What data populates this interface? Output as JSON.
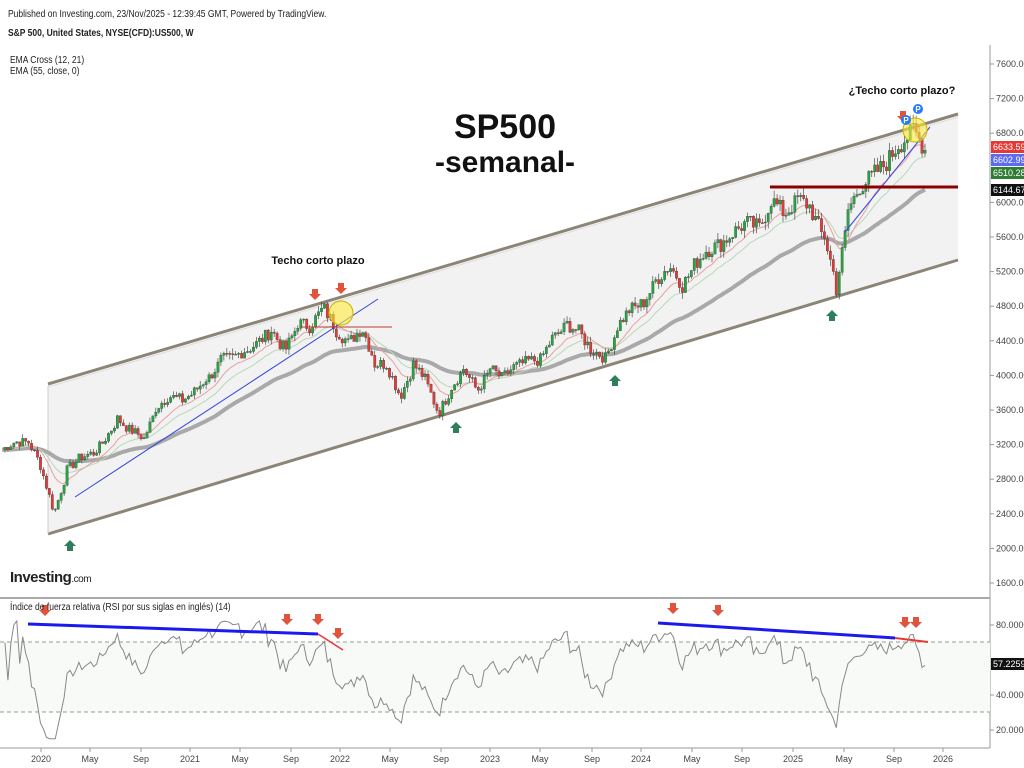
{
  "header": {
    "published": "Published on Investing.com, 23/Nov/2025 - 12:39:45 GMT, Powered by TradingView.",
    "symbol": "S&P 500, United States, NYSE(CFD):US500, W"
  },
  "indicators": [
    "EMA Cross (12, 21)",
    "EMA (55, close, 0)"
  ],
  "logo": {
    "name": "Investing",
    "suffix": "com"
  },
  "rsi_label": "Índice de fuerza relativa (RSI por sus siglas en inglés) (14)",
  "annotations": {
    "title": "SP500",
    "subtitle": "-semanal-",
    "note1": "Techo corto plazo",
    "note2": "¿Techo corto plazo?",
    "marker": "P"
  },
  "price_tags": [
    {
      "value": "6633.59",
      "color": "#e53935"
    },
    {
      "value": "6602.99",
      "color": "#5c6bf0"
    },
    {
      "value": "6510.28",
      "color": "#2e7d32"
    },
    {
      "value": "6144.67",
      "color": "#111111"
    }
  ],
  "rsi_tag": {
    "value": "57.2259",
    "color": "#111111"
  },
  "chart_data": {
    "type": "candlestick",
    "title": "SP500 -semanal-",
    "interval": "weekly",
    "price_axis": {
      "ticks": [
        1600,
        2000,
        2400,
        2800,
        3200,
        3600,
        4000,
        4400,
        4800,
        5200,
        5600,
        6000,
        6800,
        7200,
        7600
      ],
      "range": [
        1400,
        7800
      ]
    },
    "rsi_axis": {
      "ticks": [
        20,
        40,
        80
      ],
      "range": [
        12,
        88
      ],
      "levels": [
        30,
        70
      ]
    },
    "x_ticks": [
      "2020",
      "May",
      "Sep",
      "2021",
      "May",
      "Sep",
      "2022",
      "May",
      "Sep",
      "2023",
      "May",
      "Sep",
      "2024",
      "May",
      "Sep",
      "2025",
      "May",
      "Sep",
      "2026"
    ],
    "monthly_closes": {
      "start": "2019-11",
      "values": [
        3141,
        3231,
        3226,
        2954,
        2450,
        2912,
        3044,
        3100,
        3271,
        3500,
        3363,
        3270,
        3622,
        3756,
        3714,
        3811,
        3973,
        4181,
        4204,
        4298,
        4395,
        4523,
        4308,
        4605,
        4567,
        4766,
        4516,
        4374,
        4530,
        4132,
        4132,
        3785,
        4130,
        3955,
        3586,
        3872,
        4080,
        3840,
        4077,
        3970,
        4109,
        4169,
        4180,
        4450,
        4589,
        4508,
        4288,
        4194,
        4568,
        4770,
        4846,
        5096,
        5254,
        5036,
        5278,
        5460,
        5522,
        5648,
        5762,
        5705,
        6032,
        5882,
        6040,
        5955,
        5612,
        5000,
        5912,
        6205,
        6339,
        6460,
        6688,
        6840,
        6603
      ]
    },
    "series": [
      {
        "name": "EMA 12",
        "color": "#e57373"
      },
      {
        "name": "EMA 21",
        "color": "#a5d6a7"
      },
      {
        "name": "EMA 55",
        "color": "#9e9e9e"
      },
      {
        "name": "RSI 14",
        "color": "#777777"
      }
    ]
  }
}
